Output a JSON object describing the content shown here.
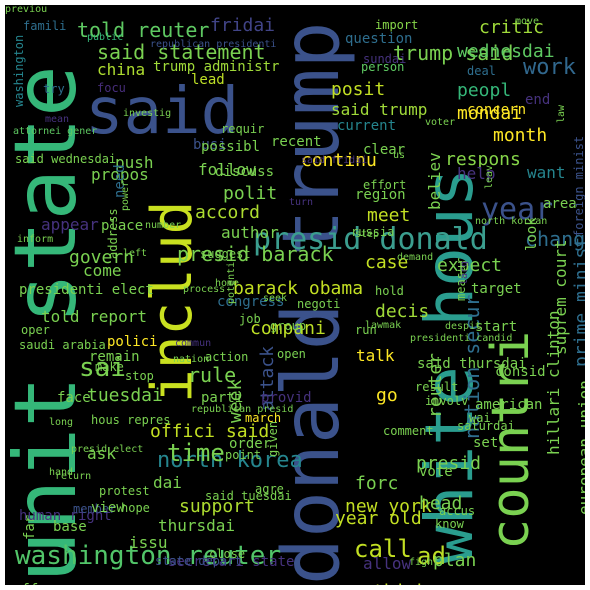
{
  "word_cloud": {
    "background": "#000000",
    "words": [
      {
        "text": "unit state",
        "color": "#35b779"
      },
      {
        "text": "donald trump",
        "color": "#3b528b"
      },
      {
        "text": "white hous",
        "color": "#2a9d8f"
      },
      {
        "text": "said",
        "color": "#3b528b"
      },
      {
        "text": "includ",
        "color": "#c9e020"
      },
      {
        "text": "countri",
        "color": "#7ad151"
      },
      {
        "text": "presid donald",
        "color": "#3b9e8f"
      },
      {
        "text": "washington reuter",
        "color": "#52c569"
      },
      {
        "text": "year",
        "color": "#3b528b"
      },
      {
        "text": "north korea",
        "color": "#25858e"
      },
      {
        "text": "told reuter",
        "color": "#5ec962"
      },
      {
        "text": "fridai",
        "color": "#414487"
      },
      {
        "text": "trump said",
        "color": "#7ad151"
      },
      {
        "text": "critic",
        "color": "#9fda3a"
      },
      {
        "text": "said statement",
        "color": "#7ad151"
      },
      {
        "text": "wednesdai",
        "color": "#5ec962"
      },
      {
        "text": "trump administr",
        "color": "#a0da39"
      },
      {
        "text": "china",
        "color": "#addc30"
      },
      {
        "text": "work",
        "color": "#31688e"
      },
      {
        "text": "focu",
        "color": "#472d7b"
      },
      {
        "text": "lead",
        "color": "#bddf26"
      },
      {
        "text": "posit",
        "color": "#c2df23"
      },
      {
        "text": "peopl",
        "color": "#35b779"
      },
      {
        "text": "mondai",
        "color": "#fde725"
      },
      {
        "text": "said trump",
        "color": "#a0da39"
      },
      {
        "text": "current",
        "color": "#25858e"
      },
      {
        "text": "month",
        "color": "#fde725"
      },
      {
        "text": "concern",
        "color": "#fde725"
      },
      {
        "text": "end",
        "color": "#46327e"
      },
      {
        "text": "deal",
        "color": "#2e6e8e"
      },
      {
        "text": "question",
        "color": "#2e6e8e"
      },
      {
        "text": "sundai",
        "color": "#46327e"
      },
      {
        "text": "person",
        "color": "#5ec962"
      },
      {
        "text": "import",
        "color": "#86d549"
      },
      {
        "text": "famili",
        "color": "#2e6e8e"
      },
      {
        "text": "public",
        "color": "#35b779"
      },
      {
        "text": "republican presidenti",
        "color": "#3b528b"
      },
      {
        "text": "washington",
        "color": "#25858e"
      },
      {
        "text": "try",
        "color": "#2e6e8e"
      },
      {
        "text": "mean",
        "color": "#46327e"
      },
      {
        "text": "attornei gener",
        "color": "#5ec962"
      },
      {
        "text": "busi",
        "color": "#3b528b"
      },
      {
        "text": "push",
        "color": "#7ad151"
      },
      {
        "text": "said wednesdai",
        "color": "#7ad151"
      },
      {
        "text": "propos",
        "color": "#7ad151"
      },
      {
        "text": "need",
        "color": "#2e6e8e"
      },
      {
        "text": "follow",
        "color": "#7ad151"
      },
      {
        "text": "polit",
        "color": "#7ad151"
      },
      {
        "text": "continu",
        "color": "#fde725"
      },
      {
        "text": "respons",
        "color": "#86d549"
      },
      {
        "text": "help",
        "color": "#46327e"
      },
      {
        "text": "want",
        "color": "#25858e"
      },
      {
        "text": "believ",
        "color": "#7ad151"
      },
      {
        "text": "chang",
        "color": "#2e6e8e"
      },
      {
        "text": "appear",
        "color": "#46327e"
      },
      {
        "text": "author",
        "color": "#7ad151"
      },
      {
        "text": "accord",
        "color": "#addc30"
      },
      {
        "text": "meet",
        "color": "#c2df23"
      },
      {
        "text": "govern",
        "color": "#7ad151"
      },
      {
        "text": "presid barack",
        "color": "#7ad151"
      },
      {
        "text": "case",
        "color": "#c2df23"
      },
      {
        "text": "expect",
        "color": "#7ad151"
      },
      {
        "text": "come",
        "color": "#7ad151"
      },
      {
        "text": "barack obama",
        "color": "#c2df23"
      },
      {
        "text": "congress",
        "color": "#2e6e8e"
      },
      {
        "text": "decis",
        "color": "#a0da39"
      },
      {
        "text": "prime minist",
        "color": "#2e6e8e"
      },
      {
        "text": "told report",
        "color": "#7ad151"
      },
      {
        "text": "compani",
        "color": "#bddf26"
      },
      {
        "text": "talk",
        "color": "#fde725"
      },
      {
        "text": "sai",
        "color": "#7ad151"
      },
      {
        "text": "rule",
        "color": "#7ad151"
      },
      {
        "text": "tuesdai",
        "color": "#7ad151"
      },
      {
        "text": "week",
        "color": "#7ad151"
      },
      {
        "text": "attack",
        "color": "#3b528b"
      },
      {
        "text": "go",
        "color": "#fde725"
      },
      {
        "text": "offici said",
        "color": "#c2df23"
      },
      {
        "text": "time",
        "color": "#7ad151"
      },
      {
        "text": "ask",
        "color": "#7ad151"
      },
      {
        "text": "dai",
        "color": "#7ad151"
      },
      {
        "text": "support",
        "color": "#addc30"
      },
      {
        "text": "new york",
        "color": "#c2df23"
      },
      {
        "text": "year old",
        "color": "#c2df23"
      },
      {
        "text": "call",
        "color": "#c2df23"
      },
      {
        "text": "ad",
        "color": "#bddf26"
      },
      {
        "text": "thursdai",
        "color": "#7ad151"
      },
      {
        "text": "issu",
        "color": "#7ad151"
      },
      {
        "text": "allow",
        "color": "#46327e"
      },
      {
        "text": "plan",
        "color": "#7ad151"
      },
      {
        "text": "think",
        "color": "#c2df23"
      },
      {
        "text": "islam state",
        "color": "#7ad151"
      },
      {
        "text": "secretari state",
        "color": "#46327e"
      },
      {
        "text": "hous repres",
        "color": "#7ad151"
      },
      {
        "text": "european union",
        "color": "#7ad151"
      },
      {
        "text": "hillari clinton",
        "color": "#7ad151"
      },
      {
        "text": "suprem court",
        "color": "#7ad151"
      },
      {
        "text": "nation secur",
        "color": "#2e6e8e"
      },
      {
        "text": "reuter",
        "color": "#7ad151"
      },
      {
        "text": "presid",
        "color": "#7ad151"
      },
      {
        "text": "set",
        "color": "#7ad151"
      },
      {
        "text": "vote",
        "color": "#7ad151"
      },
      {
        "text": "forc",
        "color": "#7ad151"
      },
      {
        "text": "head",
        "color": "#7ad151"
      },
      {
        "text": "wai",
        "color": "#7ad151"
      },
      {
        "text": "american",
        "color": "#7ad151"
      },
      {
        "text": "far",
        "color": "#7ad151"
      },
      {
        "text": "human right",
        "color": "#46327e"
      },
      {
        "text": "base",
        "color": "#7ad151"
      },
      {
        "text": "offer",
        "color": "#7ad151"
      },
      {
        "text": "member",
        "color": "#3b528b"
      },
      {
        "text": "protest",
        "color": "#7ad151"
      },
      {
        "text": "view",
        "color": "#7ad151"
      },
      {
        "text": "hope",
        "color": "#7ad151"
      },
      {
        "text": "state depart",
        "color": "#3b528b"
      },
      {
        "text": "close",
        "color": "#7ad151"
      },
      {
        "text": "point",
        "color": "#7ad151"
      },
      {
        "text": "order",
        "color": "#7ad151"
      },
      {
        "text": "agre",
        "color": "#7ad151"
      },
      {
        "text": "given",
        "color": "#7ad151"
      },
      {
        "text": "parti",
        "color": "#7ad151"
      },
      {
        "text": "face",
        "color": "#7ad151"
      },
      {
        "text": "remain",
        "color": "#7ad151"
      },
      {
        "text": "make",
        "color": "#7ad151"
      },
      {
        "text": "stop",
        "color": "#7ad151"
      },
      {
        "text": "action",
        "color": "#7ad151"
      },
      {
        "text": "provid",
        "color": "#46327e"
      },
      {
        "text": "saudi arabia",
        "color": "#7ad151"
      },
      {
        "text": "oper",
        "color": "#7ad151"
      },
      {
        "text": "presidenti elect",
        "color": "#7ad151"
      },
      {
        "text": "polici",
        "color": "#fde725"
      },
      {
        "text": "job",
        "color": "#7ad151"
      },
      {
        "text": "group",
        "color": "#7ad151"
      },
      {
        "text": "open",
        "color": "#7ad151"
      },
      {
        "text": "said thursdai",
        "color": "#7ad151"
      },
      {
        "text": "start",
        "color": "#7ad151"
      },
      {
        "text": "run",
        "color": "#7ad151"
      },
      {
        "text": "lawmak",
        "color": "#7ad151"
      },
      {
        "text": "target",
        "color": "#7ad151"
      },
      {
        "text": "hold",
        "color": "#7ad151"
      },
      {
        "text": "negoti",
        "color": "#7ad151"
      },
      {
        "text": "seek",
        "color": "#7ad151"
      },
      {
        "text": "region",
        "color": "#7ad151"
      },
      {
        "text": "effort",
        "color": "#7ad151"
      },
      {
        "text": "clear",
        "color": "#7ad151"
      },
      {
        "text": "recent",
        "color": "#7ad151"
      },
      {
        "text": "possibl",
        "color": "#7ad151"
      },
      {
        "text": "discuss",
        "color": "#7ad151"
      },
      {
        "text": "place",
        "color": "#7ad151"
      },
      {
        "text": "suggest",
        "color": "#7ad151"
      },
      {
        "text": "step",
        "color": "#7ad151"
      },
      {
        "text": "russia",
        "color": "#7ad151"
      },
      {
        "text": "look",
        "color": "#7ad151"
      },
      {
        "text": "area",
        "color": "#7ad151"
      },
      {
        "text": "trump campaign",
        "color": "#3b528b"
      },
      {
        "text": "foreign minist",
        "color": "#3b528b"
      },
      {
        "text": "consid",
        "color": "#7ad151"
      },
      {
        "text": "result",
        "color": "#7ad151"
      },
      {
        "text": "charg",
        "color": "#7ad151"
      },
      {
        "text": "fight",
        "color": "#7ad151"
      },
      {
        "text": "know",
        "color": "#7ad151"
      },
      {
        "text": "accus",
        "color": "#7ad151"
      },
      {
        "text": "involv",
        "color": "#7ad151"
      },
      {
        "text": "saturdai",
        "color": "#7ad151"
      },
      {
        "text": "comment",
        "color": "#7ad151"
      },
      {
        "text": "march",
        "color": "#fde725"
      },
      {
        "text": "said tuesdai",
        "color": "#7ad151"
      },
      {
        "text": "presid elect",
        "color": "#7ad151"
      },
      {
        "text": "long",
        "color": "#7ad151"
      },
      {
        "text": "return",
        "color": "#7ad151"
      },
      {
        "text": "hand",
        "color": "#7ad151"
      },
      {
        "text": "inform",
        "color": "#7ad151"
      },
      {
        "text": "number",
        "color": "#7ad151"
      },
      {
        "text": "left",
        "color": "#7ad151"
      },
      {
        "text": "address",
        "color": "#7ad151"
      },
      {
        "text": "power",
        "color": "#7ad151"
      },
      {
        "text": "turn",
        "color": "#46327e"
      },
      {
        "text": "north korean",
        "color": "#7ad151"
      },
      {
        "text": "demand",
        "color": "#7ad151"
      },
      {
        "text": "home",
        "color": "#7ad151"
      },
      {
        "text": "process",
        "color": "#7ad151"
      },
      {
        "text": "potenti",
        "color": "#7ad151"
      },
      {
        "text": "commun",
        "color": "#46327e"
      },
      {
        "text": "nation",
        "color": "#7ad151"
      },
      {
        "text": "presidenti candid",
        "color": "#7ad151"
      },
      {
        "text": "despit",
        "color": "#7ad151"
      },
      {
        "text": "measur",
        "color": "#7ad151"
      },
      {
        "text": "requir",
        "color": "#7ad151"
      },
      {
        "text": "investig",
        "color": "#7ad151"
      },
      {
        "text": "voter",
        "color": "#7ad151"
      },
      {
        "text": "law",
        "color": "#7ad151"
      },
      {
        "text": "move",
        "color": "#7ad151"
      },
      {
        "text": "leav",
        "color": "#7ad151"
      },
      {
        "text": "larg",
        "color": "#46327e"
      },
      {
        "text": "republican presid",
        "color": "#7ad151"
      },
      {
        "text": "us",
        "color": "#7ad151"
      },
      {
        "text": "said fridai",
        "color": "#46327e"
      },
      {
        "text": "previou",
        "color": "#7ad151"
      }
    ]
  }
}
